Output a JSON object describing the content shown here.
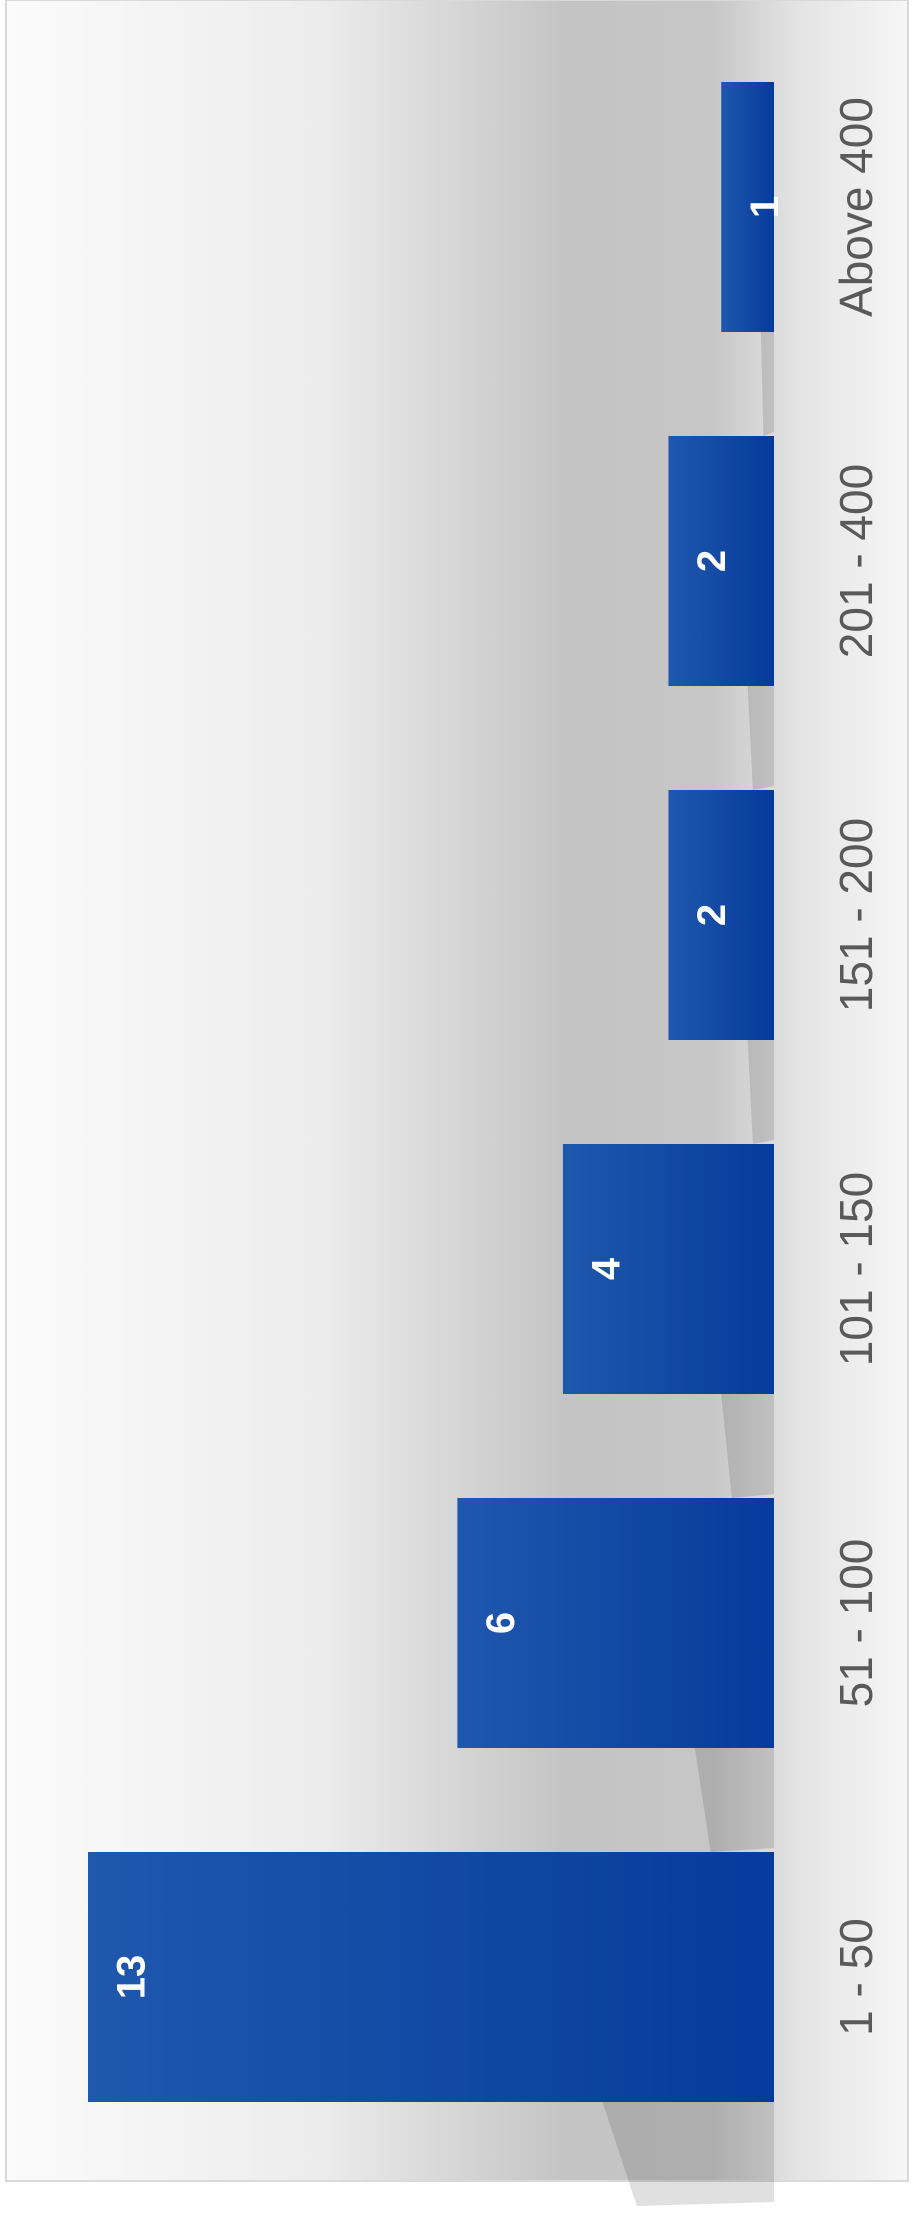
{
  "chart_data": {
    "type": "bar",
    "orientation": "rotated",
    "categories": [
      "1 - 50",
      "51 - 100",
      "101 - 150",
      "151 - 200",
      "201 - 400",
      "Above 400"
    ],
    "values": [
      13,
      6,
      4,
      2,
      2,
      1
    ],
    "color": "#0a3f9e"
  }
}
